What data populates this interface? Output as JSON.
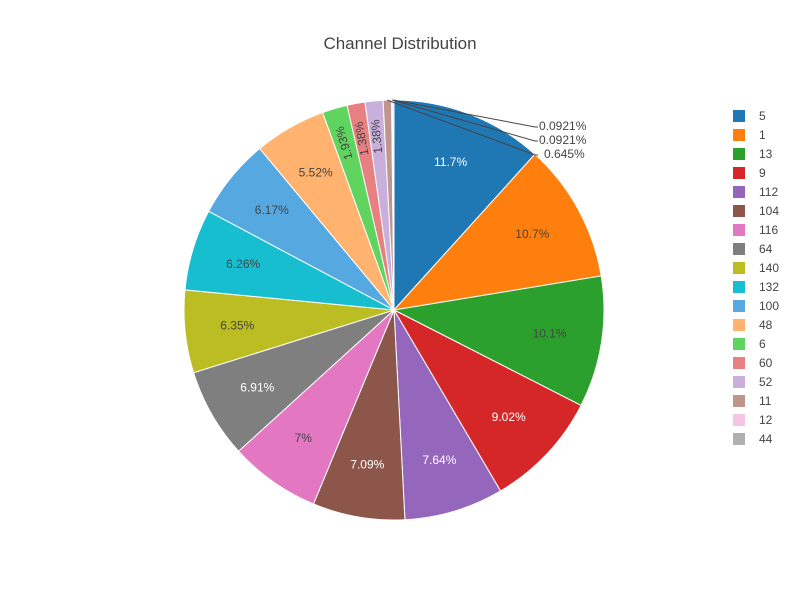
{
  "chart_data": {
    "type": "pie",
    "title": "Channel Distribution",
    "legend_position": "right",
    "slices": [
      {
        "label": "5",
        "percent": 11.7,
        "text": "11.7%",
        "color": "#1f77b4"
      },
      {
        "label": "1",
        "percent": 10.7,
        "text": "10.7%",
        "color": "#ff7f0e"
      },
      {
        "label": "13",
        "percent": 10.1,
        "text": "10.1%",
        "color": "#2ca02c"
      },
      {
        "label": "9",
        "percent": 9.02,
        "text": "9.02%",
        "color": "#d62728"
      },
      {
        "label": "112",
        "percent": 7.64,
        "text": "7.64%",
        "color": "#9467bd"
      },
      {
        "label": "104",
        "percent": 7.09,
        "text": "7.09%",
        "color": "#8c564b"
      },
      {
        "label": "116",
        "percent": 7.0,
        "text": "7%",
        "color": "#e377c2"
      },
      {
        "label": "64",
        "percent": 6.91,
        "text": "6.91%",
        "color": "#7f7f7f"
      },
      {
        "label": "140",
        "percent": 6.35,
        "text": "6.35%",
        "color": "#bcbd22"
      },
      {
        "label": "132",
        "percent": 6.26,
        "text": "6.26%",
        "color": "#17becf"
      },
      {
        "label": "100",
        "percent": 6.17,
        "text": "6.17%",
        "color": "#56a8e0"
      },
      {
        "label": "48",
        "percent": 5.52,
        "text": "5.52%",
        "color": "#ffb36e"
      },
      {
        "label": "6",
        "percent": 1.93,
        "text": "1.93%",
        "color": "#5fd45f"
      },
      {
        "label": "60",
        "percent": 1.38,
        "text": "1.38%",
        "color": "#e87f80"
      },
      {
        "label": "52",
        "percent": 1.38,
        "text": "1.38%",
        "color": "#c9b0dc"
      },
      {
        "label": "11",
        "percent": 0.645,
        "text": "0.645%",
        "color": "#c0958d"
      },
      {
        "label": "12",
        "percent": 0.0921,
        "text": "0.0921%",
        "color": "#f7c4e6"
      },
      {
        "label": "44",
        "percent": 0.0921,
        "text": "0.0921%",
        "color": "#b0b0b0"
      }
    ]
  }
}
